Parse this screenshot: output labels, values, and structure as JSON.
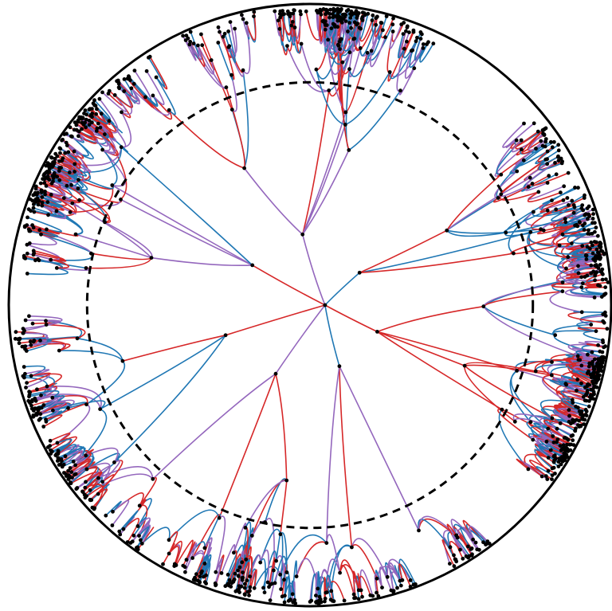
{
  "figure": {
    "kind": "hyperbolic-embedding-tree",
    "boundary_style": "solid",
    "inner_circle_style": "dashed",
    "inner_circle_relative_radius": 0.74,
    "node_count": 1200,
    "edge_color_palette": {
      "blue": "#1f77b4",
      "red": "#d62728",
      "purple": "#9467bd"
    },
    "node_color": "#000000",
    "boundary_color": "#000000",
    "background_color": "#ffffff"
  }
}
